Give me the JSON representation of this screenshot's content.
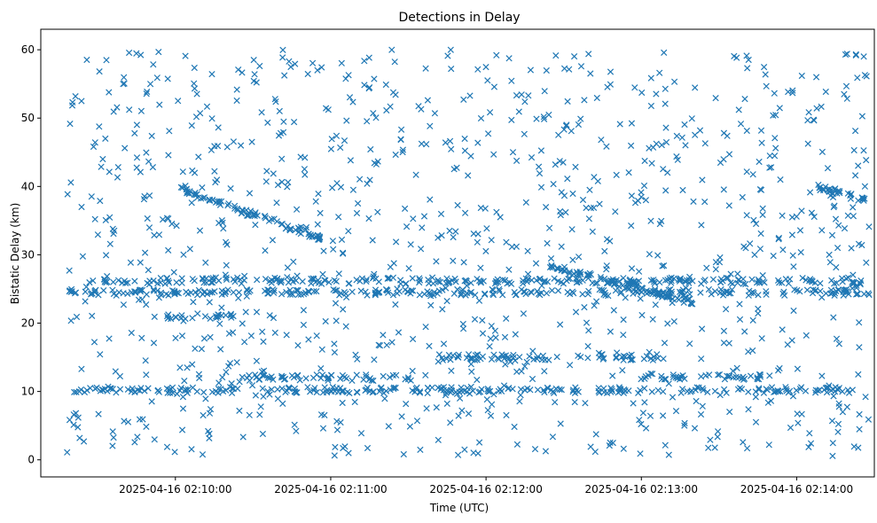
{
  "chart_data": {
    "type": "scatter",
    "title": "Detections in Delay",
    "xlabel": "Time (UTC)",
    "ylabel": "Bistatic Delay (km)",
    "marker": "x",
    "color": "#1f77b4",
    "xlim_seconds": [
      -52,
      270
    ],
    "ylim": [
      -2.5,
      63
    ],
    "x_ticks": [
      {
        "t": 0,
        "label": "2025-04-16 02:10:00"
      },
      {
        "t": 60,
        "label": "2025-04-16 02:11:00"
      },
      {
        "t": 120,
        "label": "2025-04-16 02:12:00"
      },
      {
        "t": 180,
        "label": "2025-04-16 02:13:00"
      },
      {
        "t": 240,
        "label": "2025-04-16 02:14:00"
      }
    ],
    "y_ticks": [
      0,
      10,
      20,
      30,
      40,
      50,
      60
    ],
    "x_unit": "seconds after 2025-04-16 02:10:00 UTC",
    "tracks": [
      {
        "name": "track-1",
        "t_start": 2,
        "t_end": 56,
        "delay_start": 39.5,
        "delay_end": 32.5
      },
      {
        "name": "track-2",
        "t_start": 143,
        "t_end": 200,
        "delay_start": 28.5,
        "delay_end": 23.0
      },
      {
        "name": "track-3",
        "t_start": 248,
        "t_end": 267,
        "delay_start": 40.0,
        "delay_end": 38.0
      },
      {
        "name": "band-10",
        "t_start": -40,
        "t_end": 268,
        "delay": 10.2
      },
      {
        "name": "band-12",
        "t_start": 25,
        "t_end": 90,
        "delay": 12.0
      },
      {
        "name": "band-12b",
        "t_start": 180,
        "t_end": 230,
        "delay": 12.2
      },
      {
        "name": "band-24",
        "t_start": -42,
        "t_end": 268,
        "delay": 24.5
      },
      {
        "name": "band-26",
        "t_start": -30,
        "t_end": 268,
        "delay": 26.2
      },
      {
        "name": "band-21",
        "t_start": -5,
        "t_end": 25,
        "delay": 21.0
      },
      {
        "name": "band-15",
        "t_start": 100,
        "t_end": 190,
        "delay": 15.0
      }
    ],
    "points_note": "approximately 1,800 scattered detections between 0 and 60 km across the time range"
  }
}
